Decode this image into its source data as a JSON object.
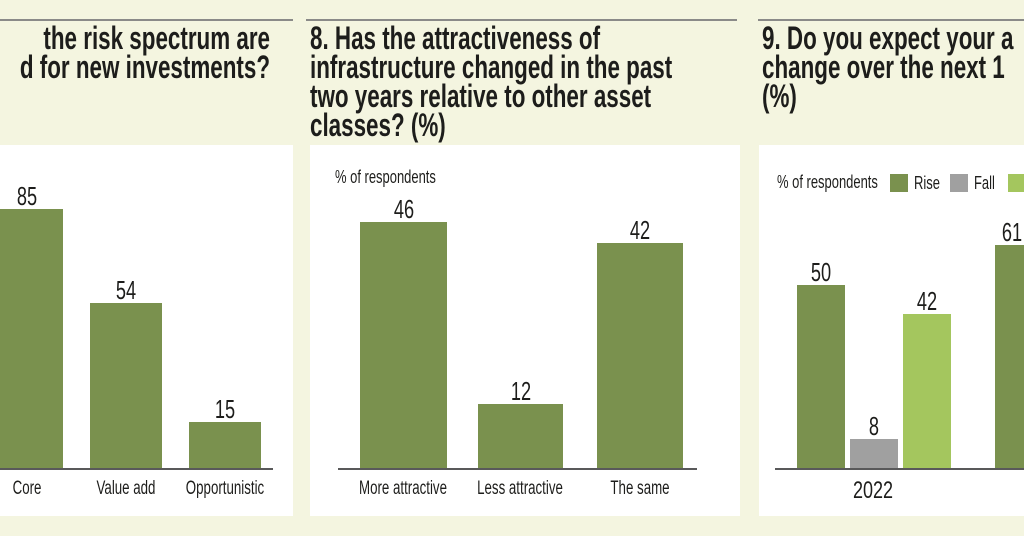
{
  "colors": {
    "background": "#f4f5e0",
    "chart_bg": "#ffffff",
    "bar_green": "#7a914e",
    "bar_light_green": "#a4c65e",
    "bar_gray": "#a0a0a0",
    "axis_line": "#59595a",
    "divider_rule": "#8a8a88",
    "text": "#1d1d1b"
  },
  "panels": [
    {
      "title_lines": [
        "the risk spectrum are",
        "d for new investments?"
      ],
      "note": "",
      "categories": [
        "Core",
        "Value add",
        "Opportunistic"
      ],
      "values": [
        85,
        54,
        15
      ]
    },
    {
      "title_lines": [
        "8. Has the attractiveness of",
        "infrastructure changed in the past",
        "two years relative to other asset",
        "classes? (%)"
      ],
      "note": "% of respondents",
      "categories": [
        "More attractive",
        "Less attractive",
        "The same"
      ],
      "values": [
        46,
        12,
        42
      ]
    },
    {
      "title_lines": [
        "9. Do you expect your a",
        "change over the next 1",
        "(%)"
      ],
      "note": "% of respondents",
      "legend": [
        {
          "label": "Rise",
          "color": "#7a914e"
        },
        {
          "label": "Fall",
          "color": "#a0a0a0"
        },
        {
          "label": "",
          "color": "#a4c65e"
        }
      ],
      "groups": [
        {
          "label": "2022",
          "values": [
            50,
            8,
            42
          ],
          "colors": [
            "#7a914e",
            "#a0a0a0",
            "#a4c65e"
          ]
        },
        {
          "label": "",
          "values": [
            61
          ],
          "colors": [
            "#7a914e"
          ]
        }
      ]
    }
  ],
  "chart_data": [
    {
      "type": "bar",
      "title": "the risk spectrum are / d for new investments? (question cut off at left edge)",
      "categories": [
        "Core",
        "Value add",
        "Opportunistic"
      ],
      "values": [
        85,
        54,
        15
      ],
      "xlabel": "",
      "ylabel": "",
      "grid": false,
      "bar_color": "#7a914e"
    },
    {
      "type": "bar",
      "title": "8. Has the attractiveness of infrastructure changed in the past two years relative to other asset classes? (%)",
      "categories": [
        "More attractive",
        "Less attractive",
        "The same"
      ],
      "values": [
        46,
        12,
        42
      ],
      "xlabel": "",
      "ylabel": "% of respondents",
      "grid": false,
      "bar_color": "#7a914e"
    },
    {
      "type": "bar",
      "title": "9. Do you expect your a… change over the next 1… (%) (question cut off at right edge)",
      "categories": [
        "2022",
        ""
      ],
      "series": [
        {
          "name": "Rise",
          "color": "#7a914e",
          "values": [
            50,
            61
          ]
        },
        {
          "name": "Fall",
          "color": "#a0a0a0",
          "values": [
            8,
            null
          ]
        },
        {
          "name": "",
          "color": "#a4c65e",
          "values": [
            42,
            null
          ]
        }
      ],
      "xlabel": "",
      "ylabel": "% of respondents",
      "legend_position": "top",
      "grid": false
    }
  ]
}
